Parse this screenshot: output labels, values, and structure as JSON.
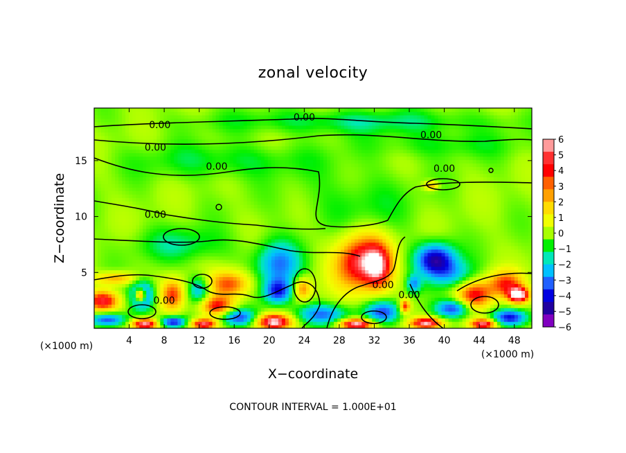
{
  "chart_data": {
    "type": "heatmap",
    "title": "zonal velocity",
    "xlabel": "X−coordinate",
    "ylabel": "Z−coordinate",
    "x_unit": "(×1000 m)",
    "xlim": [
      0,
      50
    ],
    "ylim": [
      0,
      19.7
    ],
    "x_ticks": [
      "4",
      "8",
      "12",
      "16",
      "20",
      "24",
      "28",
      "32",
      "36",
      "40",
      "44",
      "48"
    ],
    "x_tick_values": [
      4,
      8,
      12,
      16,
      20,
      24,
      28,
      32,
      36,
      40,
      44,
      48
    ],
    "y_ticks": [
      "5",
      "10",
      "15"
    ],
    "y_tick_values": [
      5,
      10,
      15
    ],
    "colorbar": {
      "labels": [
        "6",
        "5",
        "4",
        "3",
        "2",
        "1",
        "0",
        "−1",
        "−2",
        "−3",
        "−4",
        "−5",
        "−6"
      ],
      "values": [
        6,
        5,
        4,
        3,
        2,
        1,
        0,
        -1,
        -2,
        -3,
        -4,
        -5,
        -6
      ],
      "colors": [
        "#ff9a9a",
        "#ff3030",
        "#ff0000",
        "#ff6000",
        "#ffa000",
        "#ffdc00",
        "#f0ff00",
        "#a8ff00",
        "#00f000",
        "#00e8b8",
        "#00c0ff",
        "#2060ff",
        "#0000e0",
        "#2000a0",
        "#8000c0"
      ]
    },
    "contour_labels": [
      {
        "text": "0.00",
        "x": 7.5,
        "z": 18.2
      },
      {
        "text": "0.00",
        "x": 24.0,
        "z": 18.9
      },
      {
        "text": "0.00",
        "x": 38.5,
        "z": 17.3
      },
      {
        "text": "0.00",
        "x": 7.0,
        "z": 16.2
      },
      {
        "text": "0.00",
        "x": 14.0,
        "z": 14.5
      },
      {
        "text": "0.00",
        "x": 40.0,
        "z": 14.3
      },
      {
        "text": "0.00",
        "x": 7.0,
        "z": 10.2
      },
      {
        "text": "0.00",
        "x": 8.0,
        "z": 2.5
      },
      {
        "text": "0.00",
        "x": 33.0,
        "z": 3.9
      },
      {
        "text": "0.00",
        "x": 36.0,
        "z": 3.0
      }
    ],
    "blobs": [
      {
        "x": 30.5,
        "z": 6.0,
        "v": 5.5,
        "rx": 3.0,
        "rz": 2.6
      },
      {
        "x": 32.5,
        "z": 5.5,
        "v": 3.5,
        "rx": 1.5,
        "rz": 2.0
      },
      {
        "x": 21.0,
        "z": 5.8,
        "v": -3.5,
        "rx": 2.5,
        "rz": 2.0
      },
      {
        "x": 21.0,
        "z": 3.3,
        "v": -4.5,
        "rx": 1.6,
        "rz": 1.1
      },
      {
        "x": 39.0,
        "z": 6.2,
        "v": -5.5,
        "rx": 2.2,
        "rz": 1.4
      },
      {
        "x": 41.0,
        "z": 4.8,
        "v": -2.5,
        "rx": 2.5,
        "rz": 1.3
      },
      {
        "x": 23.8,
        "z": 3.6,
        "v": 3.5,
        "rx": 1.0,
        "rz": 1.0
      },
      {
        "x": 15.5,
        "z": 4.0,
        "v": 4.0,
        "rx": 2.5,
        "rz": 1.2
      },
      {
        "x": 14.0,
        "z": 2.0,
        "v": 4.5,
        "rx": 2.0,
        "rz": 0.9
      },
      {
        "x": 12.0,
        "z": 3.5,
        "v": -3.0,
        "rx": 1.2,
        "rz": 1.2
      },
      {
        "x": 9.0,
        "z": 3.0,
        "v": 4.0,
        "rx": 1.3,
        "rz": 1.4
      },
      {
        "x": 5.5,
        "z": 3.0,
        "v": -5.0,
        "rx": 1.3,
        "rz": 1.3
      },
      {
        "x": 5.3,
        "z": 3.0,
        "v": 7.0,
        "rx": 0.6,
        "rz": 0.6
      },
      {
        "x": 1.0,
        "z": 2.5,
        "v": 5.0,
        "rx": 1.8,
        "rz": 0.9
      },
      {
        "x": 2.5,
        "z": 4.5,
        "v": 3.0,
        "rx": 2.5,
        "rz": 0.6
      },
      {
        "x": 1.5,
        "z": 0.8,
        "v": -4.5,
        "rx": 2.0,
        "rz": 0.6
      },
      {
        "x": 5.8,
        "z": 0.4,
        "v": 6.5,
        "rx": 1.5,
        "rz": 0.5
      },
      {
        "x": 9.0,
        "z": 0.6,
        "v": -5.0,
        "rx": 1.5,
        "rz": 0.5
      },
      {
        "x": 12.5,
        "z": 0.4,
        "v": 6.0,
        "rx": 1.5,
        "rz": 0.5
      },
      {
        "x": 16.5,
        "z": 1.0,
        "v": -4.5,
        "rx": 2.0,
        "rz": 0.8
      },
      {
        "x": 20.5,
        "z": 0.6,
        "v": 6.5,
        "rx": 2.0,
        "rz": 0.7
      },
      {
        "x": 26.0,
        "z": 1.3,
        "v": -3.5,
        "rx": 3.0,
        "rz": 0.9
      },
      {
        "x": 30.0,
        "z": 0.4,
        "v": 6.5,
        "rx": 2.0,
        "rz": 0.5
      },
      {
        "x": 33.0,
        "z": 1.5,
        "v": -4.0,
        "rx": 2.0,
        "rz": 1.0
      },
      {
        "x": 35.5,
        "z": 2.0,
        "v": 4.5,
        "rx": 0.6,
        "rz": 0.6
      },
      {
        "x": 38.0,
        "z": 0.5,
        "v": 6.0,
        "rx": 1.8,
        "rz": 0.5
      },
      {
        "x": 41.0,
        "z": 1.8,
        "v": -4.5,
        "rx": 2.0,
        "rz": 0.8
      },
      {
        "x": 43.5,
        "z": 3.0,
        "v": 4.5,
        "rx": 2.0,
        "rz": 1.3
      },
      {
        "x": 47.0,
        "z": 4.0,
        "v": 4.0,
        "rx": 2.0,
        "rz": 1.2
      },
      {
        "x": 48.5,
        "z": 3.0,
        "v": 6.5,
        "rx": 1.2,
        "rz": 0.7
      },
      {
        "x": 47.5,
        "z": 1.0,
        "v": -4.5,
        "rx": 2.0,
        "rz": 0.7
      },
      {
        "x": 44.5,
        "z": 0.4,
        "v": 6.0,
        "rx": 1.5,
        "rz": 0.5
      },
      {
        "x": 36.5,
        "z": 4.0,
        "v": -3.0,
        "rx": 0.8,
        "rz": 0.8
      },
      {
        "x": 38.5,
        "z": 12.8,
        "v": 3.0,
        "rx": 0.8,
        "rz": 0.4
      },
      {
        "x": 10.0,
        "z": 7.5,
        "v": -1.5,
        "rx": 5.0,
        "rz": 1.5
      },
      {
        "x": 30.0,
        "z": 11.0,
        "v": -1.0,
        "rx": 6.0,
        "rz": 3.0
      },
      {
        "x": 15.0,
        "z": 15.0,
        "v": -1.2,
        "rx": 10.0,
        "rz": 1.5
      },
      {
        "x": 30.0,
        "z": 18.5,
        "v": -1.5,
        "rx": 15.0,
        "rz": 1.0
      },
      {
        "x": 40.0,
        "z": 16.5,
        "v": -1.0,
        "rx": 8.0,
        "rz": 1.2
      }
    ]
  },
  "footer": "CONTOUR INTERVAL = 1.000E+01"
}
